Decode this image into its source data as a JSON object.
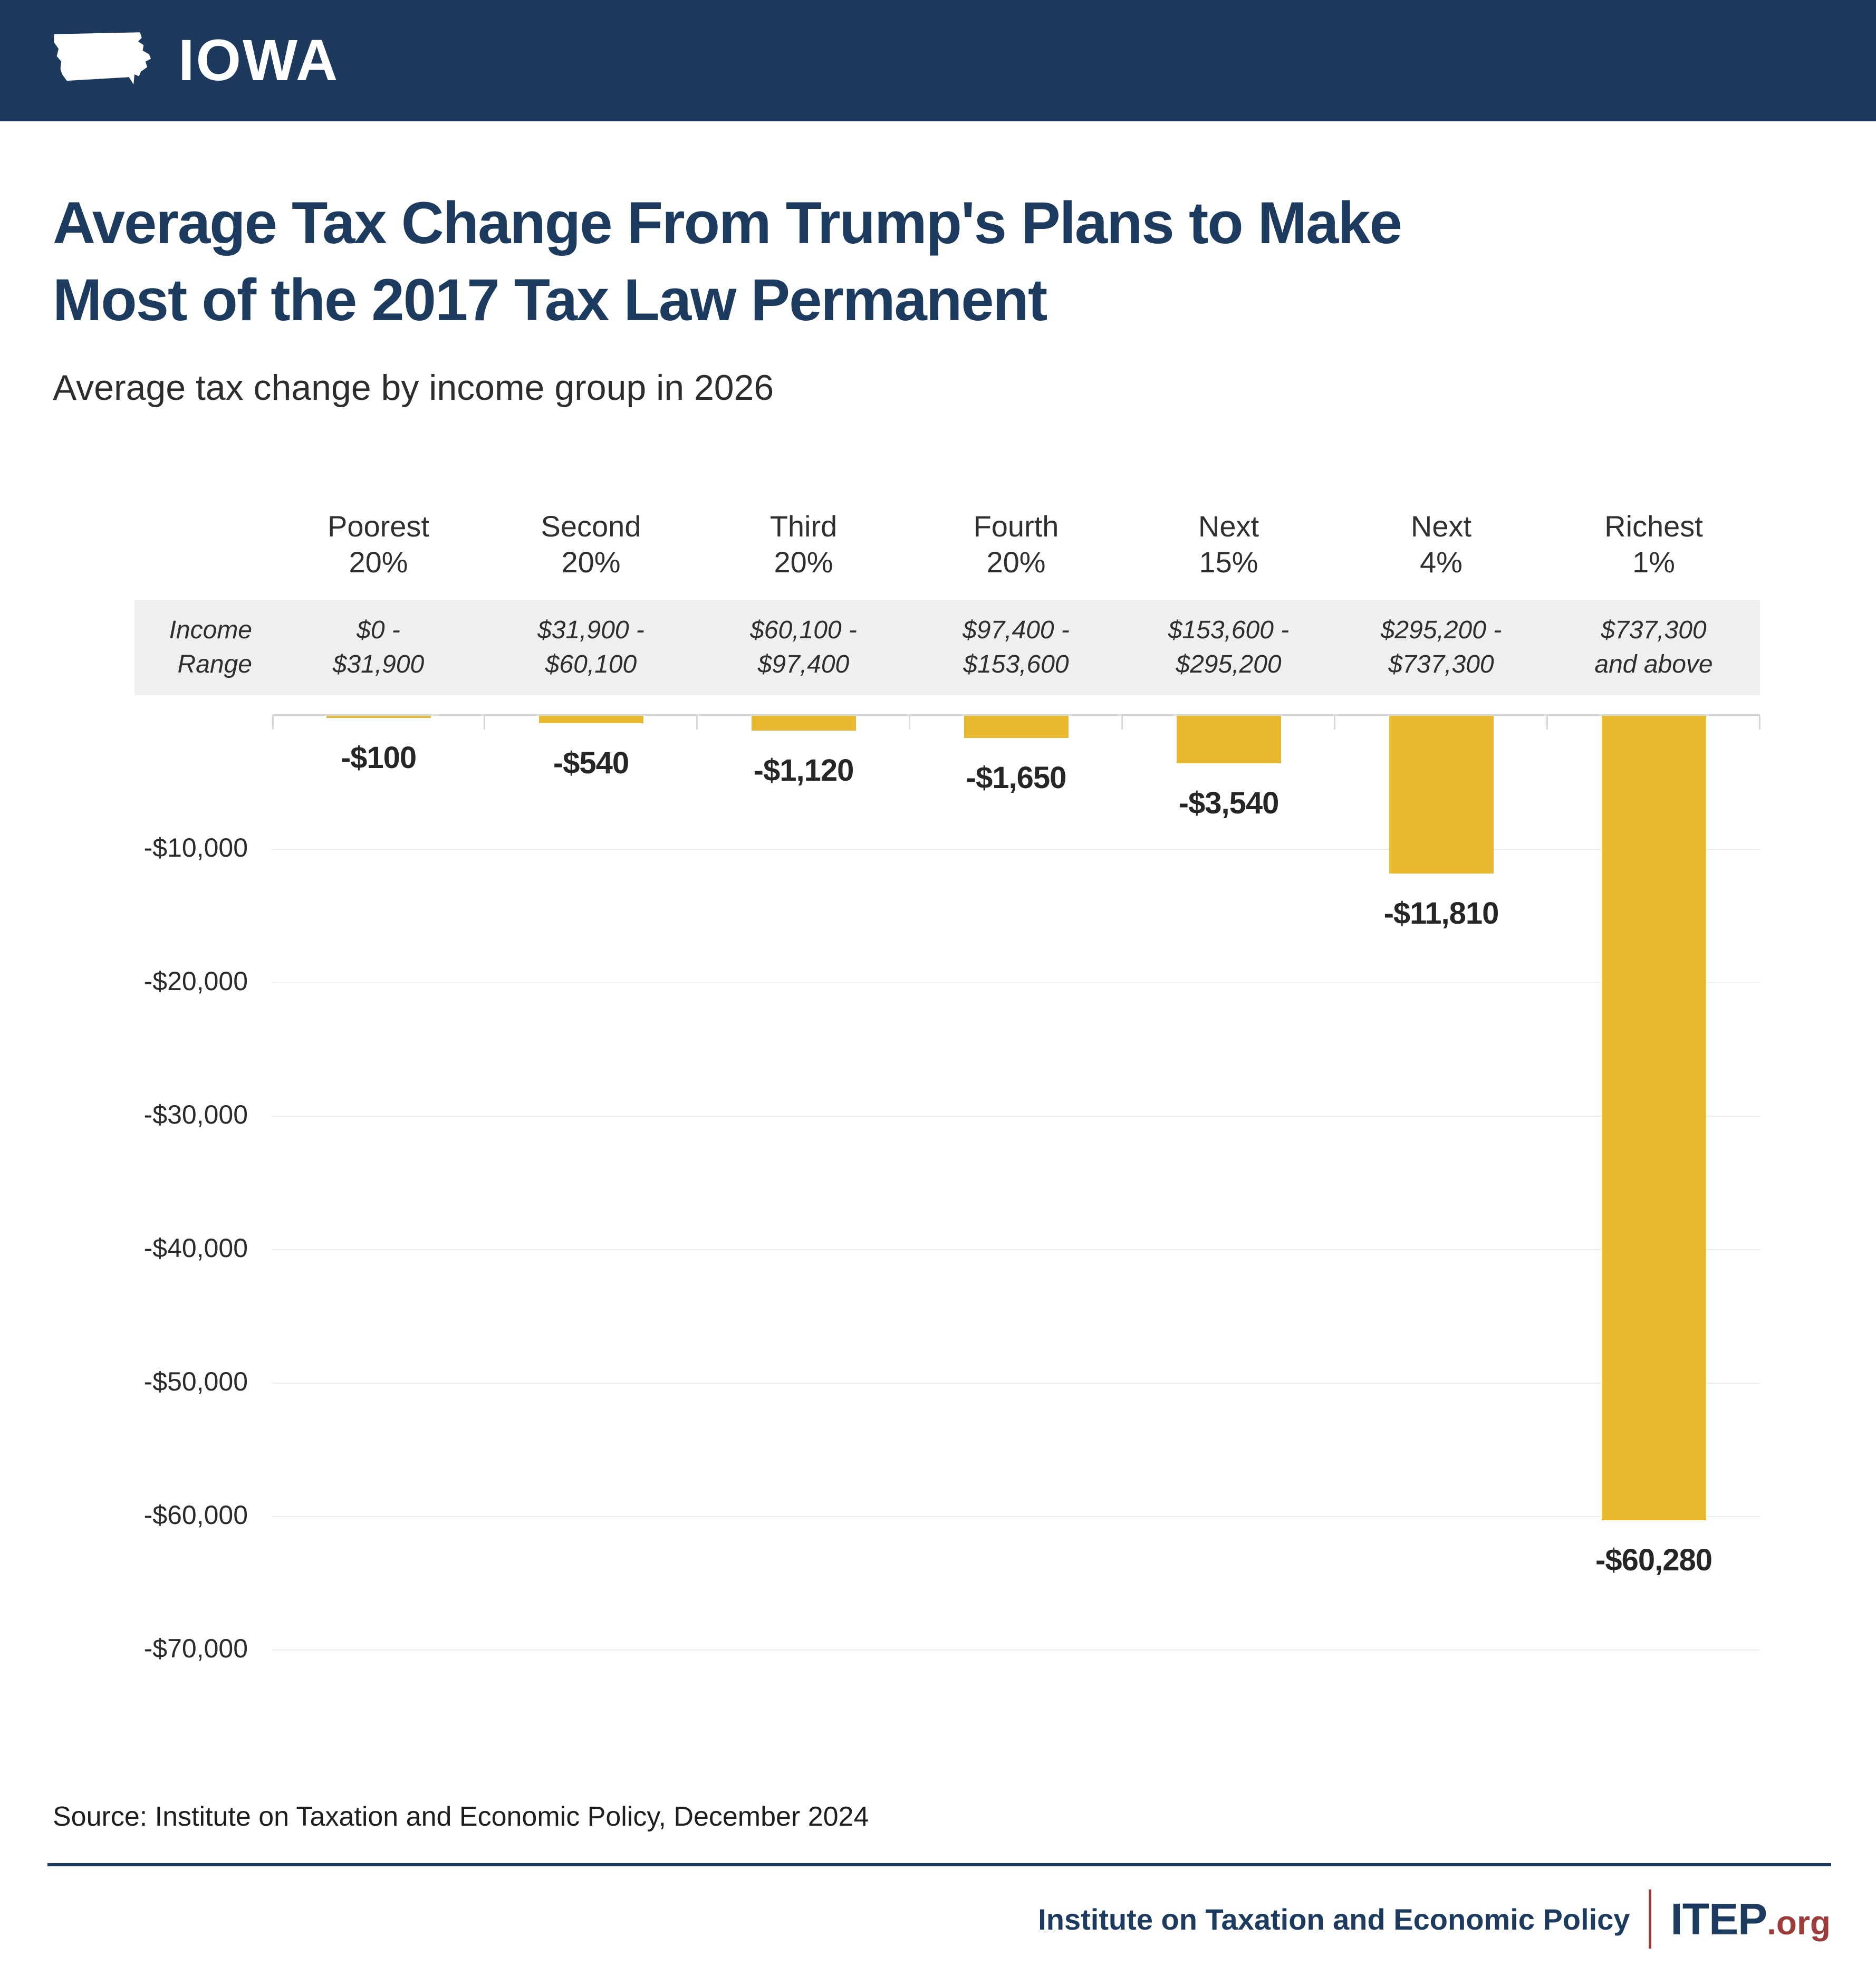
{
  "header": {
    "state": "IOWA"
  },
  "title": {
    "line1": "Average Tax Change From Trump's Plans to Make",
    "line2": "Most of the 2017 Tax Law Permanent"
  },
  "subtitle": "Average tax change by income group in 2026",
  "income_range_label": {
    "line1": "Income",
    "line2": "Range"
  },
  "chart_data": {
    "type": "bar",
    "title": "Average Tax Change From Trump's Plans to Make Most of the 2017 Tax Law Permanent",
    "subtitle": "Average tax change by income group in 2026",
    "categories": [
      "Poorest 20%",
      "Second 20%",
      "Third 20%",
      "Fourth 20%",
      "Next 15%",
      "Next 4%",
      "Richest 1%"
    ],
    "category_lines": [
      [
        "Poorest",
        "20%"
      ],
      [
        "Second",
        "20%"
      ],
      [
        "Third",
        "20%"
      ],
      [
        "Fourth",
        "20%"
      ],
      [
        "Next",
        "15%"
      ],
      [
        "Next",
        "4%"
      ],
      [
        "Richest",
        "1%"
      ]
    ],
    "income_ranges": [
      [
        "$0 -",
        "$31,900"
      ],
      [
        "$31,900 -",
        "$60,100"
      ],
      [
        "$60,100 -",
        "$97,400"
      ],
      [
        "$97,400 -",
        "$153,600"
      ],
      [
        "$153,600 -",
        "$295,200"
      ],
      [
        "$295,200 -",
        "$737,300"
      ],
      [
        "$737,300",
        "and above"
      ]
    ],
    "values": [
      -100,
      -540,
      -1120,
      -1650,
      -3540,
      -11810,
      -60280
    ],
    "value_labels": [
      "-$100",
      "-$540",
      "-$1,120",
      "-$1,650",
      "-$3,540",
      "-$11,810",
      "-$60,280"
    ],
    "yticks": [
      "-$10,000",
      "-$20,000",
      "-$30,000",
      "-$40,000",
      "-$50,000",
      "-$60,000",
      "-$70,000"
    ],
    "ytick_values": [
      -10000,
      -20000,
      -30000,
      -40000,
      -50000,
      -60000,
      -70000
    ],
    "ylim": [
      0,
      -70000
    ],
    "grid": true,
    "legend": "none",
    "bar_color": "#E8B92E"
  },
  "source": "Source: Institute on Taxation and Economic Policy, December 2024",
  "footer": {
    "org": "Institute on Taxation and Economic Policy",
    "brand": "ITEP",
    "brand_suffix": ".org"
  },
  "colors": {
    "navy": "#1D3A5E",
    "title_navy": "#1D3A5F",
    "gold": "#E8B92E",
    "brand_red": "#9E3B3B",
    "row_gray": "#EFEFEF"
  }
}
